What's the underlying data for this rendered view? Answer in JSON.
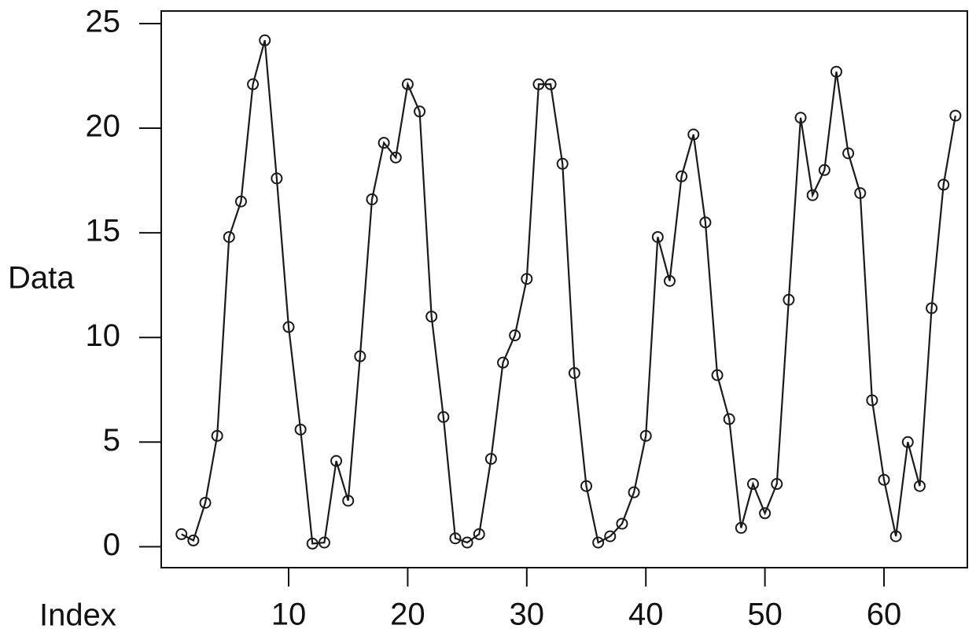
{
  "chart_data": {
    "type": "line",
    "xlabel": "Index",
    "ylabel": "Data",
    "x": [
      1,
      2,
      3,
      4,
      5,
      6,
      7,
      8,
      9,
      10,
      11,
      12,
      13,
      14,
      15,
      16,
      17,
      18,
      19,
      20,
      21,
      22,
      23,
      24,
      25,
      26,
      27,
      28,
      29,
      30,
      31,
      32,
      33,
      34,
      35,
      36,
      37,
      38,
      39,
      40,
      41,
      42,
      43,
      44,
      45,
      46,
      47,
      48,
      49,
      50,
      51,
      52,
      53,
      54,
      55,
      56,
      57,
      58,
      59,
      60,
      61,
      62,
      63,
      64,
      65,
      66
    ],
    "series": [
      {
        "color": "#1a1a1a",
        "marker": "circle",
        "values": [
          0.6,
          0.3,
          2.1,
          5.3,
          14.8,
          16.5,
          22.1,
          24.2,
          17.6,
          10.5,
          5.6,
          0.15,
          0.2,
          4.1,
          2.2,
          9.1,
          16.6,
          19.3,
          18.6,
          22.1,
          20.8,
          11.0,
          6.2,
          0.4,
          0.2,
          0.6,
          4.2,
          8.8,
          10.1,
          12.8,
          22.1,
          22.1,
          18.3,
          8.3,
          2.9,
          0.2,
          0.5,
          1.1,
          2.6,
          5.3,
          14.8,
          12.7,
          17.7,
          19.7,
          15.5,
          8.2,
          6.1,
          0.9,
          3.0,
          1.6,
          3.0,
          11.8,
          20.5,
          16.8,
          18.0,
          22.7,
          18.8,
          16.9,
          7.0,
          3.2,
          0.5,
          5.0,
          2.9,
          11.4,
          17.3,
          20.6
        ]
      }
    ],
    "xlim": [
      -0.7,
      67
    ],
    "xticks": [
      10,
      20,
      30,
      40,
      50,
      60
    ],
    "ylim": [
      -1,
      25.6
    ],
    "yticks": [
      0,
      5,
      10,
      15,
      20,
      25
    ]
  }
}
